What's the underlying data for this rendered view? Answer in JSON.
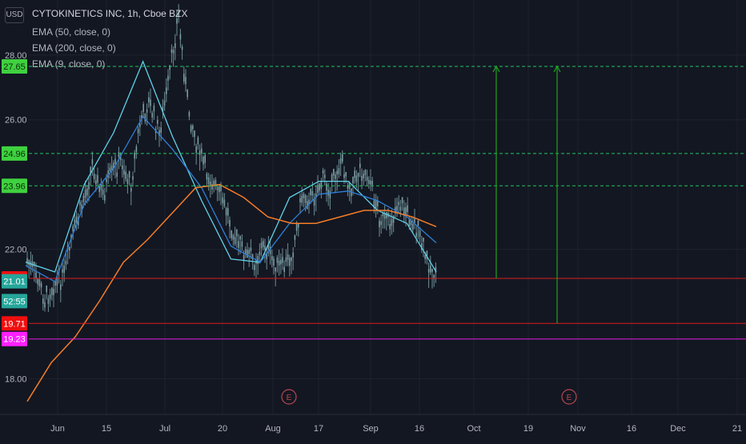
{
  "header": {
    "currency": "USD",
    "title": "CYTOKINETICS INC, 1h, Cboe BZX",
    "indicators": [
      "EMA (50, close, 0)",
      "EMA (200, close, 0)",
      "EMA (9, close, 0)"
    ]
  },
  "colors": {
    "background": "#131722",
    "grid": "#1e222d",
    "text": "#b2b5be",
    "ema9": "#5fd3e8",
    "ema50": "#2f7fd6",
    "ema200": "#f57c28",
    "candle": "#7fa3a8",
    "level_green": "#22c55e",
    "level_green_tag": "#3fd13f",
    "level_red": "#d81d1d",
    "level_magenta": "#e01fe0",
    "arrow": "#1fa01f",
    "price_tag_teal": "#26a69a",
    "earnings": "#b9474e"
  },
  "chart_data": {
    "type": "candlestick",
    "y_axis_ticks": [
      "28.00",
      "26.00",
      "22.00",
      "18.00"
    ],
    "ylim": [
      16.9,
      29.7
    ],
    "x_axis_ticks": [
      "Jun",
      "15",
      "Jul",
      "20",
      "Aug",
      "17",
      "Sep",
      "16",
      "Oct",
      "19",
      "Nov",
      "16",
      "Dec",
      "21"
    ],
    "price_path": [
      [
        "Jun",
        21.7
      ],
      [
        "Jun",
        21.2
      ],
      [
        "Jun",
        20.4
      ],
      [
        "Jun",
        20.9
      ],
      [
        "15",
        21.1
      ],
      [
        "15",
        22.5
      ],
      [
        "15",
        23.4
      ],
      [
        "15",
        24.6
      ],
      [
        "15",
        23.6
      ],
      [
        "15",
        24.3
      ],
      [
        "15",
        24.7
      ],
      [
        "Jul",
        23.9
      ],
      [
        "Jul",
        25.9
      ],
      [
        "Jul",
        26.5
      ],
      [
        "Jul",
        25.5
      ],
      [
        "Jul",
        27.2
      ],
      [
        "Jul",
        29.2
      ],
      [
        "20",
        26.4
      ],
      [
        "20",
        25.1
      ],
      [
        "20",
        24.3
      ],
      [
        "20",
        23.8
      ],
      [
        "20",
        23.2
      ],
      [
        "Aug",
        22.3
      ],
      [
        "Aug",
        21.8
      ],
      [
        "Aug",
        21.6
      ],
      [
        "Aug",
        22.1
      ],
      [
        "Aug",
        21.5
      ],
      [
        "Aug",
        21.4
      ],
      [
        "17",
        21.9
      ],
      [
        "17",
        23.7
      ],
      [
        "17",
        23.5
      ],
      [
        "17",
        24.1
      ],
      [
        "17",
        23.9
      ],
      [
        "17",
        24.7
      ],
      [
        "Sep",
        23.9
      ],
      [
        "Sep",
        24.4
      ],
      [
        "Sep",
        24.2
      ],
      [
        "Sep",
        23.0
      ],
      [
        "Sep",
        22.7
      ],
      [
        "Sep",
        23.4
      ],
      [
        "16",
        23.1
      ],
      [
        "16",
        22.6
      ],
      [
        "16",
        21.6
      ],
      [
        "16",
        21.1
      ]
    ],
    "series": [
      {
        "name": "EMA (9, close, 0)",
        "approx_path": [
          [
            "Jun",
            21.6
          ],
          [
            "15",
            21.3
          ],
          [
            "15",
            24.0
          ],
          [
            "Jul",
            25.6
          ],
          [
            "Jul",
            27.8
          ],
          [
            "20",
            25.5
          ],
          [
            "20",
            23.5
          ],
          [
            "Aug",
            21.7
          ],
          [
            "Aug",
            21.6
          ],
          [
            "17",
            23.6
          ],
          [
            "17",
            24.1
          ],
          [
            "Sep",
            24.1
          ],
          [
            "Sep",
            23.2
          ],
          [
            "16",
            22.8
          ],
          [
            "16",
            21.3
          ]
        ]
      },
      {
        "name": "EMA (50, close, 0)",
        "approx_path": [
          [
            "Jun",
            21.5
          ],
          [
            "15",
            21.0
          ],
          [
            "15",
            23.4
          ],
          [
            "Jul",
            24.5
          ],
          [
            "Jul",
            26.1
          ],
          [
            "20",
            25.1
          ],
          [
            "20",
            23.9
          ],
          [
            "Aug",
            22.1
          ],
          [
            "Aug",
            21.6
          ],
          [
            "17",
            22.8
          ],
          [
            "17",
            23.7
          ],
          [
            "Sep",
            23.8
          ],
          [
            "Sep",
            23.5
          ],
          [
            "16",
            23.0
          ],
          [
            "16",
            22.2
          ]
        ]
      },
      {
        "name": "EMA (200, close, 0)",
        "approx_path": [
          [
            "Jun",
            17.3
          ],
          [
            "Jun",
            18.5
          ],
          [
            "Jun",
            19.3
          ],
          [
            "15",
            20.4
          ],
          [
            "15",
            21.6
          ],
          [
            "Jul",
            22.3
          ],
          [
            "Jul",
            23.1
          ],
          [
            "Jul",
            23.9
          ],
          [
            "20",
            24.0
          ],
          [
            "20",
            23.6
          ],
          [
            "Aug",
            23.0
          ],
          [
            "Aug",
            22.8
          ],
          [
            "17",
            22.8
          ],
          [
            "17",
            23.0
          ],
          [
            "Sep",
            23.2
          ],
          [
            "Sep",
            23.2
          ],
          [
            "16",
            23.0
          ],
          [
            "16",
            22.7
          ]
        ]
      }
    ],
    "levels": [
      {
        "label": "27.65",
        "value": 27.65,
        "style": "dashed",
        "color": "green"
      },
      {
        "label": "24.96",
        "value": 24.96,
        "style": "dashed",
        "color": "green"
      },
      {
        "label": "23.96",
        "value": 23.96,
        "style": "dashed",
        "color": "green"
      },
      {
        "label": "21.10",
        "value": 21.1,
        "style": "solid",
        "color": "red"
      },
      {
        "label": "19.71",
        "value": 19.71,
        "style": "solid",
        "color": "red"
      },
      {
        "label": "19.23",
        "value": 19.23,
        "style": "solid",
        "color": "magenta"
      }
    ],
    "price_tags": [
      {
        "label": "21.01",
        "value": 21.01,
        "kind": "last_price"
      },
      {
        "label": "52:55",
        "value": 20.5,
        "kind": "countdown"
      }
    ],
    "arrows": [
      {
        "x_tick": "Oct",
        "from": 21.1,
        "to": 27.65
      },
      {
        "x_tick": "19",
        "from": 19.71,
        "to": 27.65
      }
    ],
    "earnings_markers": [
      {
        "label": "E",
        "x_tick": "Aug"
      },
      {
        "label": "E",
        "x_tick": "19"
      }
    ]
  }
}
